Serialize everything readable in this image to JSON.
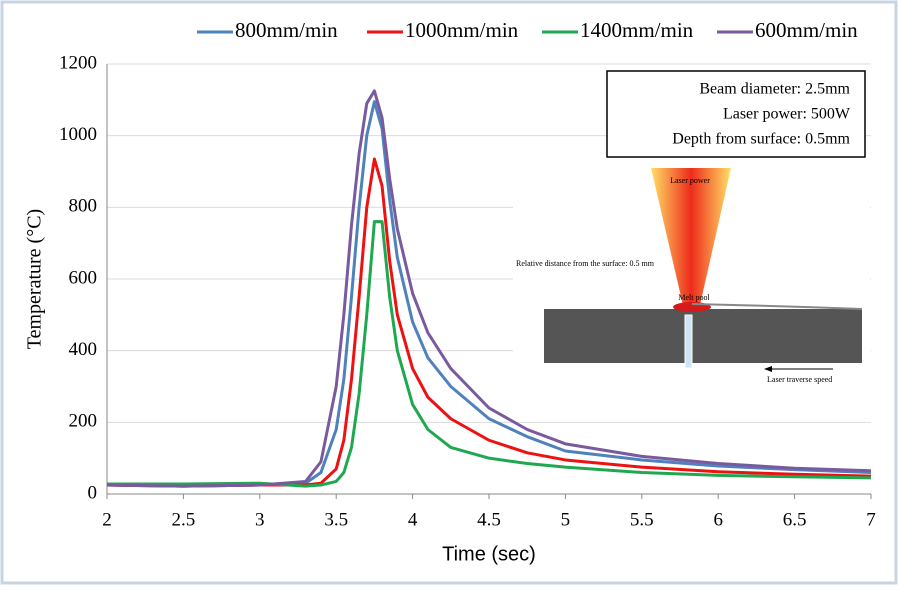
{
  "chart_data": {
    "type": "line",
    "x_label": "Time (sec)",
    "y_label": "Temperature (°C)",
    "annotations": [
      "Beam diameter: 2.5mm",
      "Laser power: 500W",
      "Depth from surface: 0.5mm"
    ],
    "inset_labels": [
      "Laser power",
      "Relative distance from the surface: 0.5 mm",
      "Melt pool",
      "Laser traverse speed"
    ],
    "x": [
      2,
      2.5,
      3,
      3.3,
      3.4,
      3.5,
      3.55,
      3.6,
      3.65,
      3.7,
      3.75,
      3.8,
      3.85,
      3.9,
      4,
      4.1,
      4.25,
      4.5,
      4.75,
      5,
      5.5,
      6,
      6.5,
      7
    ],
    "series": [
      {
        "name": "800mm/min",
        "color": "#4f81bd",
        "values": [
          25,
          22,
          25,
          30,
          60,
          180,
          320,
          550,
          800,
          1000,
          1095,
          1020,
          820,
          660,
          480,
          380,
          300,
          210,
          160,
          120,
          95,
          78,
          68,
          60
        ]
      },
      {
        "name": "1000mm/min",
        "color": "#ee1111",
        "values": [
          25,
          22,
          25,
          25,
          30,
          70,
          150,
          320,
          550,
          800,
          935,
          860,
          650,
          500,
          350,
          270,
          210,
          150,
          115,
          95,
          75,
          62,
          55,
          50
        ]
      },
      {
        "name": "1400mm/min",
        "color": "#1fa84f",
        "values": [
          28,
          28,
          30,
          22,
          25,
          35,
          60,
          130,
          280,
          500,
          760,
          760,
          550,
          400,
          250,
          180,
          130,
          100,
          85,
          75,
          60,
          52,
          48,
          45
        ]
      },
      {
        "name": "600mm/min",
        "color": "#7a5a9e",
        "values": [
          25,
          22,
          25,
          35,
          90,
          300,
          500,
          750,
          950,
          1090,
          1125,
          1050,
          880,
          740,
          560,
          450,
          350,
          240,
          180,
          140,
          105,
          85,
          72,
          65
        ]
      }
    ],
    "xlim": [
      2,
      7
    ],
    "xticks": [
      2,
      2.5,
      3,
      3.5,
      4,
      4.5,
      5,
      5.5,
      6,
      6.5,
      7
    ],
    "ylim": [
      0,
      1200
    ],
    "yticks": [
      0,
      200,
      400,
      600,
      800,
      1000,
      1200
    ],
    "grid": true,
    "legend": "top"
  }
}
